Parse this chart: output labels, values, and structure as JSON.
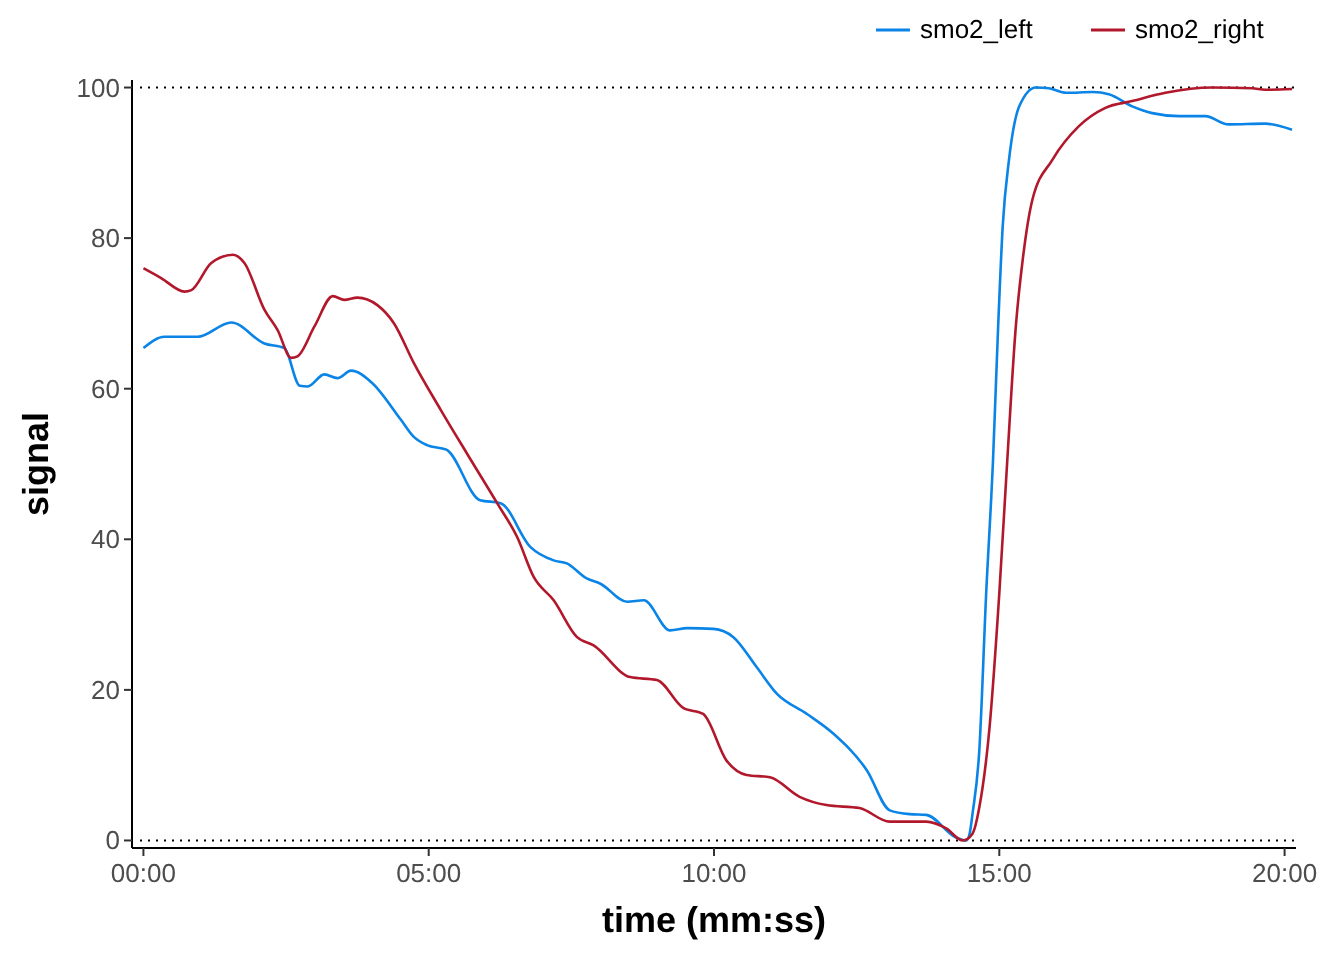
{
  "chart_data": {
    "type": "line",
    "xlabel": "time (mm:ss)",
    "ylabel": "signal",
    "xlim": [
      -0.2,
      20.2
    ],
    "ylim": [
      -1,
      101
    ],
    "xticks": [
      {
        "value": 0,
        "label": "00:00"
      },
      {
        "value": 5,
        "label": "05:00"
      },
      {
        "value": 10,
        "label": "10:00"
      },
      {
        "value": 15,
        "label": "15:00"
      },
      {
        "value": 20,
        "label": "20:00"
      }
    ],
    "yticks": [
      0,
      20,
      40,
      60,
      80,
      100
    ],
    "grid": false,
    "legend": "top right",
    "line_style": "solid",
    "marker": "none",
    "ref_lines": [
      {
        "axis": "y",
        "value": 0,
        "label": null,
        "color": "#000000",
        "line_style": "dotted"
      },
      {
        "axis": "y",
        "value": 100,
        "label": null,
        "color": "#000000",
        "line_style": "dotted"
      }
    ],
    "series": [
      {
        "name": "smo2_left",
        "color": "#0a84e6",
        "x": [
          0,
          0.37,
          0.95,
          1.54,
          2.12,
          2.47,
          2.74,
          2.88,
          3.17,
          3.4,
          3.64,
          3.99,
          4.51,
          4.74,
          4.97,
          5.31,
          5.9,
          6.26,
          6.78,
          7.19,
          7.42,
          7.77,
          8.01,
          8.48,
          8.77,
          9.23,
          9.53,
          9.99,
          10.34,
          10.75,
          11.1,
          11.63,
          12.09,
          12.68,
          13.08,
          13.43,
          13.72,
          14.24,
          14.42,
          14.48,
          14.53,
          14.65,
          14.77,
          14.89,
          14.98,
          15.06,
          15.17,
          15.35,
          15.64,
          15.87,
          16.17,
          16.64,
          16.92,
          17.33,
          17.68,
          18.15,
          18.61,
          19.02,
          19.66,
          20.13
        ],
        "values": [
          65.4,
          66.9,
          66.9,
          68.8,
          66,
          65.4,
          60.4,
          60.3,
          61.9,
          61.4,
          62.4,
          60.9,
          55.9,
          53.6,
          52.5,
          51.9,
          45.2,
          44.8,
          39,
          37.2,
          36.8,
          34.8,
          34.1,
          31.7,
          31.9,
          27.9,
          28.2,
          28.1,
          27,
          23,
          19.5,
          16.8,
          14.2,
          9.3,
          4,
          3.5,
          3.4,
          0.4,
          0,
          0.9,
          3.5,
          12,
          32.8,
          50.5,
          68.3,
          81.6,
          90.4,
          97.5,
          100,
          99.9,
          99.3,
          99.4,
          99.1,
          97.5,
          96.6,
          96.2,
          96.2,
          95.1,
          95.2,
          94.4
        ]
      },
      {
        "name": "smo2_right",
        "color": "#b2182b",
        "x": [
          0,
          0.31,
          0.72,
          0.84,
          1.19,
          1.57,
          1.77,
          2.12,
          2.35,
          2.59,
          2.7,
          3.0,
          3.32,
          3.52,
          3.75,
          4.1,
          4.39,
          4.74,
          5.21,
          5.67,
          6.2,
          6.55,
          6.84,
          7.19,
          7.6,
          7.89,
          8.53,
          9.0,
          9.46,
          9.81,
          10.22,
          10.57,
          10.98,
          11.5,
          11.97,
          12.55,
          13.08,
          13.72,
          14.07,
          14.36,
          14.53,
          14.65,
          14.83,
          15.0,
          15.14,
          15.29,
          15.41,
          15.58,
          15.93,
          16.4,
          16.86,
          17.33,
          17.91,
          18.73,
          19.43,
          19.66,
          20.13
        ],
        "values": [
          76,
          74.7,
          72.9,
          73.1,
          76.7,
          77.8,
          76.7,
          70.5,
          67.8,
          64.1,
          64.3,
          68.3,
          72.3,
          71.8,
          72.1,
          71.1,
          68.7,
          63.4,
          57.2,
          51.4,
          44.8,
          40.3,
          35,
          31.9,
          27,
          25.9,
          21.7,
          21.3,
          17.6,
          16.8,
          10.6,
          8.7,
          8.4,
          5.8,
          4.7,
          4.3,
          2.5,
          2.5,
          1.6,
          0,
          0.9,
          4.4,
          15.1,
          32.8,
          50.5,
          68.3,
          77.1,
          85.1,
          90.4,
          94.9,
          97.3,
          98.2,
          99.3,
          100,
          99.9,
          99.7,
          99.8
        ]
      }
    ]
  }
}
